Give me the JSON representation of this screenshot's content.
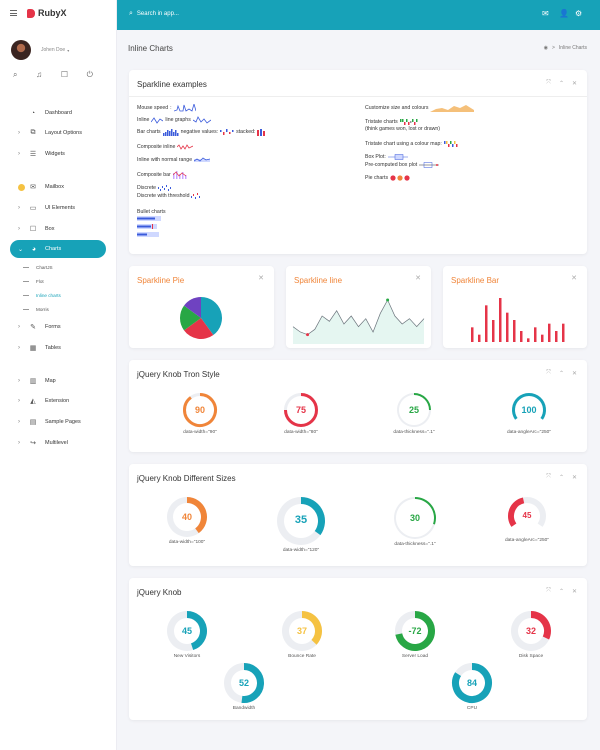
{
  "app": {
    "brand": "RubyX"
  },
  "user": {
    "name": "Johen Doe"
  },
  "topbar": {
    "search_placeholder": "Search in app...",
    "icons": [
      "mail-icon",
      "user-icon",
      "gear-icon"
    ]
  },
  "sidebar": {
    "items": [
      {
        "label": "Dashboard",
        "icon": "dashboard-icon",
        "caret": ""
      },
      {
        "label": "Layout Options",
        "icon": "layout-icon",
        "caret": "›"
      },
      {
        "label": "Widgets",
        "icon": "widgets-icon",
        "caret": "›"
      },
      {
        "label": "Mailbox",
        "icon": "mail-icon",
        "caret": ""
      },
      {
        "label": "UI Elements",
        "icon": "laptop-icon",
        "caret": "›"
      },
      {
        "label": "Box",
        "icon": "box-icon",
        "caret": "›"
      },
      {
        "label": "Charts",
        "icon": "pie-icon",
        "caret": "⌄"
      },
      {
        "label": "Forms",
        "icon": "forms-icon",
        "caret": "›"
      },
      {
        "label": "Tables",
        "icon": "table-icon",
        "caret": "›"
      },
      {
        "label": "Map",
        "icon": "map-icon",
        "caret": "›"
      },
      {
        "label": "Extension",
        "icon": "extension-icon",
        "caret": "›"
      },
      {
        "label": "Sample Pages",
        "icon": "pages-icon",
        "caret": "›"
      },
      {
        "label": "Multilevel",
        "icon": "share-icon",
        "caret": "›"
      }
    ],
    "subitems": [
      "ChartJS",
      "Flot",
      "Inline charts",
      "Morris"
    ]
  },
  "page": {
    "title": "Inline Charts",
    "breadcrumb": "Inline Charts"
  },
  "sparkline": {
    "title": "Sparkline examples",
    "left": [
      "Mouse speed",
      "Inline",
      "line graphs",
      "Bar charts",
      "negative values:",
      "stacked:",
      "Composite inline",
      "Inline with normal range",
      "Composite bar",
      "Discrete",
      "Discrete with threshold",
      "Bullet charts"
    ],
    "right": [
      "Customize size and colours",
      "Tristate charts",
      "(think games won, lost or drawn)",
      "Tristate chart using a colour map:",
      "Box Plot:",
      "Pre-computed box plot",
      "Pie charts"
    ]
  },
  "mini": [
    {
      "title": "Sparkline Pie"
    },
    {
      "title": "Sparkline line"
    },
    {
      "title": "Sparkline Bar"
    }
  ],
  "chart_data": [
    {
      "type": "pie",
      "title": "Sparkline Pie",
      "values": [
        40,
        25,
        20,
        15
      ],
      "colors": [
        "#17a2b8",
        "#e53448",
        "#28a745",
        "#6f42c1"
      ]
    },
    {
      "type": "line",
      "title": "Sparkline line",
      "values": [
        5,
        3,
        2,
        4,
        9,
        7,
        11,
        6,
        9,
        5,
        8,
        3,
        10,
        15,
        9,
        6,
        8,
        5,
        8
      ]
    },
    {
      "type": "bar",
      "title": "Sparkline Bar",
      "values": [
        4,
        2,
        10,
        6,
        12,
        8,
        6,
        3,
        1,
        4,
        2,
        5,
        3,
        5
      ]
    }
  ],
  "tron": {
    "title": "jQuery Knob Tron Style",
    "knobs": [
      {
        "value": "90",
        "caption": "data-width=\"90\"",
        "color": "#f08539"
      },
      {
        "value": "75",
        "caption": "data-width=\"80\"",
        "color": "#e53448"
      },
      {
        "value": "25",
        "caption": "data-thickness=\".1\"",
        "color": "#28a745"
      },
      {
        "value": "100",
        "caption": "data-angleArc=\"250\"",
        "color": "#17a2b8"
      }
    ]
  },
  "sizes": {
    "title": "jQuery Knob Different Sizes",
    "knobs": [
      {
        "value": "40",
        "caption": "data-width=\"100\"",
        "color": "#f08539"
      },
      {
        "value": "35",
        "caption": "data-width=\"120\"",
        "color": "#17a2b8"
      },
      {
        "value": "30",
        "caption": "data-thickness=\".1\"",
        "color": "#28a745"
      },
      {
        "value": "45",
        "caption": "data-angleArc=\"250\"",
        "color": "#e53448"
      }
    ]
  },
  "knob": {
    "title": "jQuery Knob",
    "knobs": [
      {
        "value": "45",
        "caption": "New Visitors",
        "color": "#17a2b8"
      },
      {
        "value": "37",
        "caption": "Bounce Rate",
        "color": "#f5c242"
      },
      {
        "value": "-72",
        "caption": "Server Load",
        "color": "#28a745"
      },
      {
        "value": "32",
        "caption": "Disk Space",
        "color": "#e53448"
      },
      {
        "value": "52",
        "caption": "Bandwidth",
        "color": "#17a2b8"
      },
      {
        "value": "84",
        "caption": "CPU",
        "color": "#17a2b8"
      }
    ]
  }
}
